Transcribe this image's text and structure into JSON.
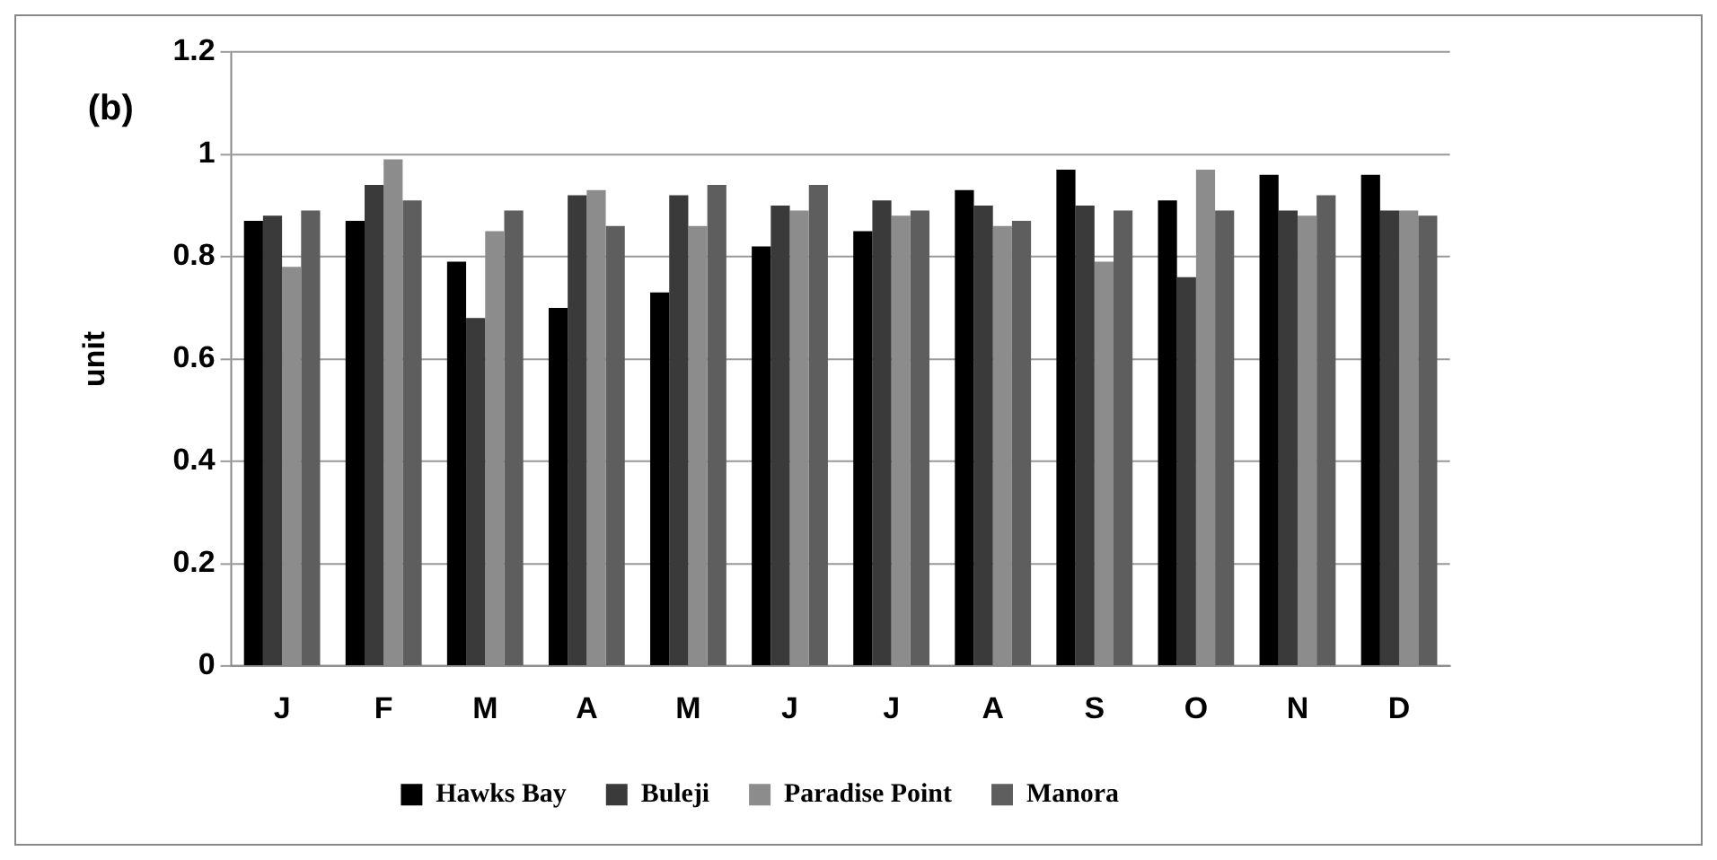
{
  "chart_data": {
    "type": "bar",
    "title": "(b)",
    "ylabel": "unit",
    "categories": [
      "J",
      "F",
      "M",
      "A",
      "M",
      "J",
      "J",
      "A",
      "S",
      "O",
      "N",
      "D"
    ],
    "series": [
      {
        "name": "Hawks Bay",
        "color": "#000000",
        "values": [
          0.87,
          0.87,
          0.79,
          0.7,
          0.73,
          0.82,
          0.85,
          0.93,
          0.97,
          0.91,
          0.96,
          0.96
        ]
      },
      {
        "name": "Buleji",
        "color": "#3a3a3a",
        "values": [
          0.88,
          0.94,
          0.68,
          0.92,
          0.92,
          0.9,
          0.91,
          0.9,
          0.9,
          0.76,
          0.89,
          0.89
        ]
      },
      {
        "name": "Paradise Point",
        "color": "#8c8c8c",
        "values": [
          0.78,
          0.99,
          0.85,
          0.93,
          0.86,
          0.89,
          0.88,
          0.86,
          0.79,
          0.97,
          0.88,
          0.89
        ]
      },
      {
        "name": "Manora",
        "color": "#5e5e5e",
        "values": [
          0.89,
          0.91,
          0.89,
          0.86,
          0.94,
          0.94,
          0.89,
          0.87,
          0.89,
          0.89,
          0.92,
          0.88
        ]
      }
    ],
    "ylim": [
      0,
      1.2
    ],
    "yticks": [
      0,
      0.2,
      0.4,
      0.6,
      0.8,
      1,
      1.2
    ],
    "grid": "y",
    "legend": "bottom"
  }
}
